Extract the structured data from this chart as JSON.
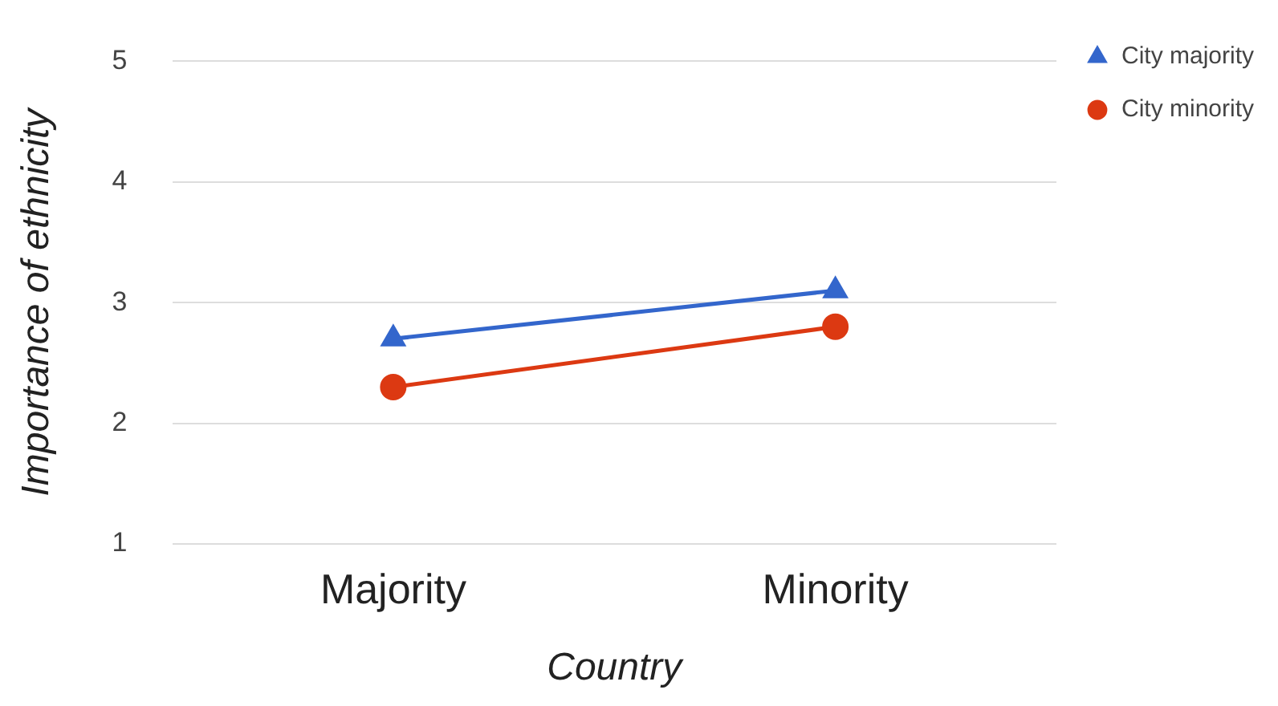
{
  "chart_data": {
    "type": "line",
    "xlabel": "Country",
    "ylabel": "Importance of ethnicity",
    "categories": [
      "Majority",
      "Minority"
    ],
    "series": [
      {
        "name": "City majority",
        "color": "#3366cc",
        "values": [
          2.7,
          3.1
        ],
        "marker": "triangle"
      },
      {
        "name": "City minority",
        "color": "#dc3912",
        "values": [
          2.3,
          2.8
        ],
        "marker": "circle"
      }
    ],
    "ylim": [
      1,
      5
    ],
    "yticks": [
      1,
      2,
      3,
      4,
      5
    ],
    "grid": "y",
    "legend": "top right"
  }
}
